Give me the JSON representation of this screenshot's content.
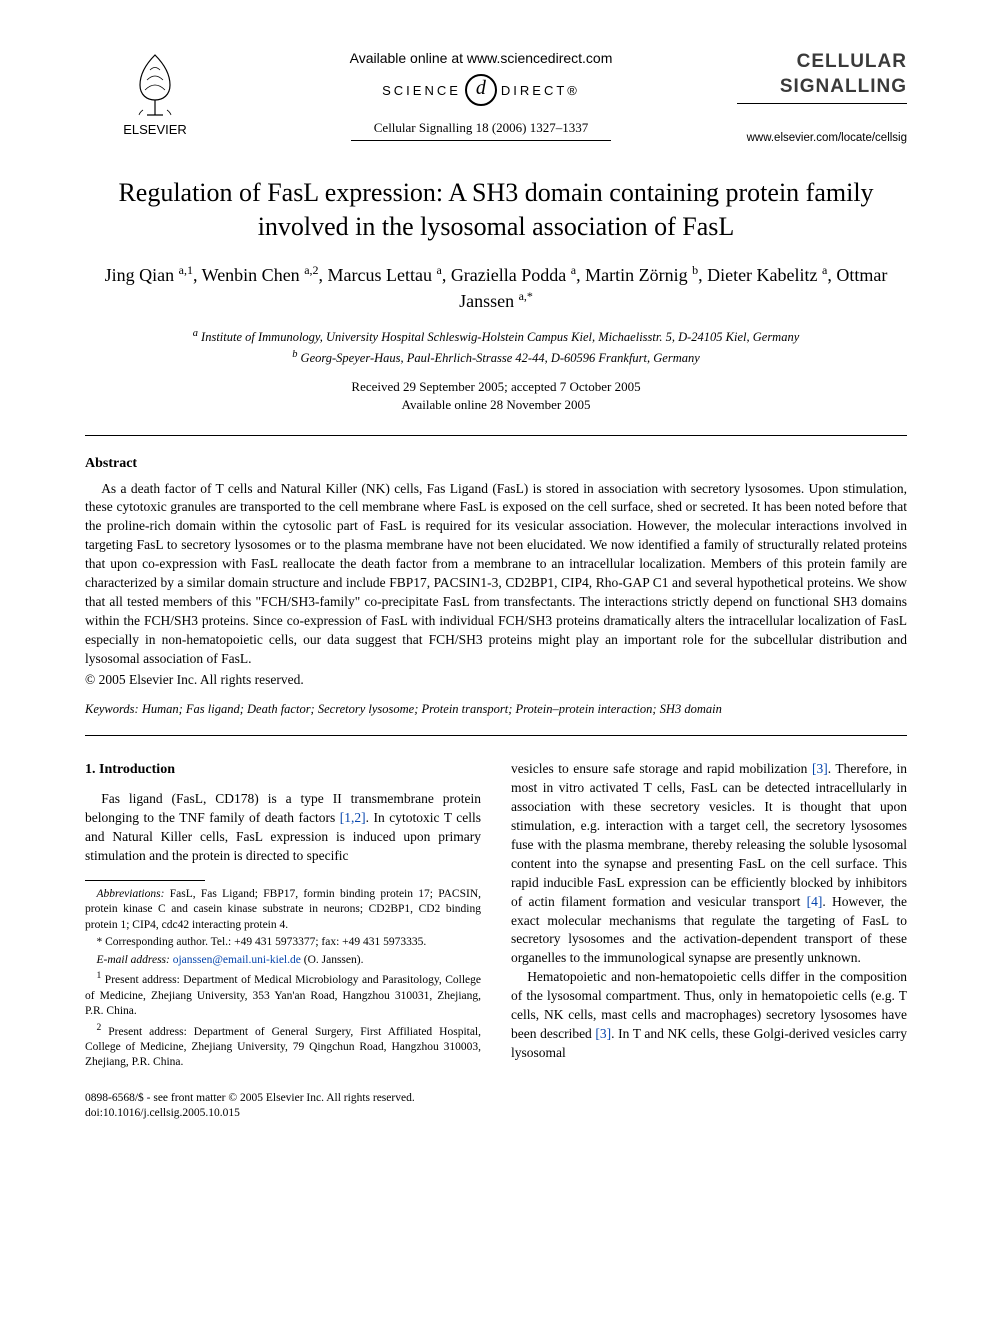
{
  "header": {
    "available_online": "Available online at www.sciencedirect.com",
    "sciencedirect_left": "SCIENCE",
    "sciencedirect_symbol": "d",
    "sciencedirect_right": "DIRECT®",
    "citation": "Cellular Signalling 18 (2006) 1327–1337",
    "publisher_name": "ELSEVIER",
    "journal_line1": "CELLULAR",
    "journal_line2": "SIGNALLING",
    "journal_url": "www.elsevier.com/locate/cellsig"
  },
  "title": "Regulation of FasL expression: A SH3 domain containing protein family involved in the lysosomal association of FasL",
  "authors_html": "Jing Qian <sup>a,1</sup>, Wenbin Chen <sup>a,2</sup>, Marcus Lettau <sup>a</sup>, Graziella Podda <sup>a</sup>, Martin Zörnig <sup>b</sup>, Dieter Kabelitz <sup>a</sup>, Ottmar Janssen <sup>a,*</sup>",
  "affiliations": {
    "a": "Institute of Immunology, University Hospital Schleswig-Holstein Campus Kiel, Michaelisstr. 5, D-24105 Kiel, Germany",
    "b": "Georg-Speyer-Haus, Paul-Ehrlich-Strasse 42-44, D-60596 Frankfurt, Germany"
  },
  "dates": {
    "received_accepted": "Received 29 September 2005; accepted 7 October 2005",
    "available": "Available online 28 November 2005"
  },
  "abstract": {
    "heading": "Abstract",
    "body": "As a death factor of T cells and Natural Killer (NK) cells, Fas Ligand (FasL) is stored in association with secretory lysosomes. Upon stimulation, these cytotoxic granules are transported to the cell membrane where FasL is exposed on the cell surface, shed or secreted. It has been noted before that the proline-rich domain within the cytosolic part of FasL is required for its vesicular association. However, the molecular interactions involved in targeting FasL to secretory lysosomes or to the plasma membrane have not been elucidated. We now identified a family of structurally related proteins that upon co-expression with FasL reallocate the death factor from a membrane to an intracellular localization. Members of this protein family are characterized by a similar domain structure and include FBP17, PACSIN1-3, CD2BP1, CIP4, Rho-GAP C1 and several hypothetical proteins. We show that all tested members of this \"FCH/SH3-family\" co-precipitate FasL from transfectants. The interactions strictly depend on functional SH3 domains within the FCH/SH3 proteins. Since co-expression of FasL with individual FCH/SH3 proteins dramatically alters the intracellular localization of FasL especially in non-hematopoietic cells, our data suggest that FCH/SH3 proteins might play an important role for the subcellular distribution and lysosomal association of FasL.",
    "copyright": "© 2005 Elsevier Inc. All rights reserved."
  },
  "keywords": {
    "label": "Keywords:",
    "value": "Human; Fas ligand; Death factor; Secretory lysosome; Protein transport; Protein–protein interaction; SH3 domain"
  },
  "introduction": {
    "heading": "1. Introduction",
    "para1_a": "Fas ligand (FasL, CD178) is a type II transmembrane protein belonging to the TNF family of death factors ",
    "ref12": "[1,2]",
    "para1_b": ". In cytotoxic T cells and Natural Killer cells, FasL expression is induced upon primary stimulation and the protein is directed to specific",
    "para2_a": "vesicles to ensure safe storage and rapid mobilization ",
    "ref3a": "[3]",
    "para2_b": ". Therefore, in most in vitro activated T cells, FasL can be detected intracellularly in association with these secretory vesicles. It is thought that upon stimulation, e.g. interaction with a target cell, the secretory lysosomes fuse with the plasma membrane, thereby releasing the soluble lysosomal content into the synapse and presenting FasL on the cell surface. This rapid inducible FasL expression can be efficiently blocked by inhibitors of actin filament formation and vesicular transport ",
    "ref4": "[4]",
    "para2_c": ". However, the exact molecular mechanisms that regulate the targeting of FasL to secretory lysosomes and the activation-dependent transport of these organelles to the immunological synapse are presently unknown.",
    "para3_a": "Hematopoietic and non-hematopoietic cells differ in the composition of the lysosomal compartment. Thus, only in hematopoietic cells (e.g. T cells, NK cells, mast cells and macrophages) secretory lysosomes have been described ",
    "ref3b": "[3]",
    "para3_b": ". In T and NK cells, these Golgi-derived vesicles carry lysosomal"
  },
  "footnotes": {
    "abbrev_label": "Abbreviations:",
    "abbrev": "FasL, Fas Ligand; FBP17, formin binding protein 17; PACSIN, protein kinase C and casein kinase substrate in neurons; CD2BP1, CD2 binding protein 1; CIP4, cdc42 interacting protein 4.",
    "corr": "* Corresponding author. Tel.: +49 431 5973377; fax: +49 431 5973335.",
    "email_label": "E-mail address:",
    "email_addr": "ojanssen@email.uni-kiel.de",
    "email_name": "(O. Janssen).",
    "note1": "Present address: Department of Medical Microbiology and Parasitology, College of Medicine, Zhejiang University, 353 Yan'an Road, Hangzhou 310031, Zhejiang, P.R. China.",
    "note2": "Present address: Department of General Surgery, First Affiliated Hospital, College of Medicine, Zhejiang University, 79 Qingchun Road, Hangzhou 310003, Zhejiang, P.R. China."
  },
  "page_footer": {
    "line1": "0898-6568/$ - see front matter © 2005 Elsevier Inc. All rights reserved.",
    "line2": "doi:10.1016/j.cellsig.2005.10.015"
  },
  "colors": {
    "text": "#000000",
    "link": "#0645AD",
    "journal_gray": "#3a3a3a",
    "background": "#ffffff"
  },
  "typography": {
    "body_font": "Times New Roman",
    "title_size_pt": 20,
    "author_size_pt": 14,
    "body_size_pt": 10,
    "footnote_size_pt": 8.5
  }
}
